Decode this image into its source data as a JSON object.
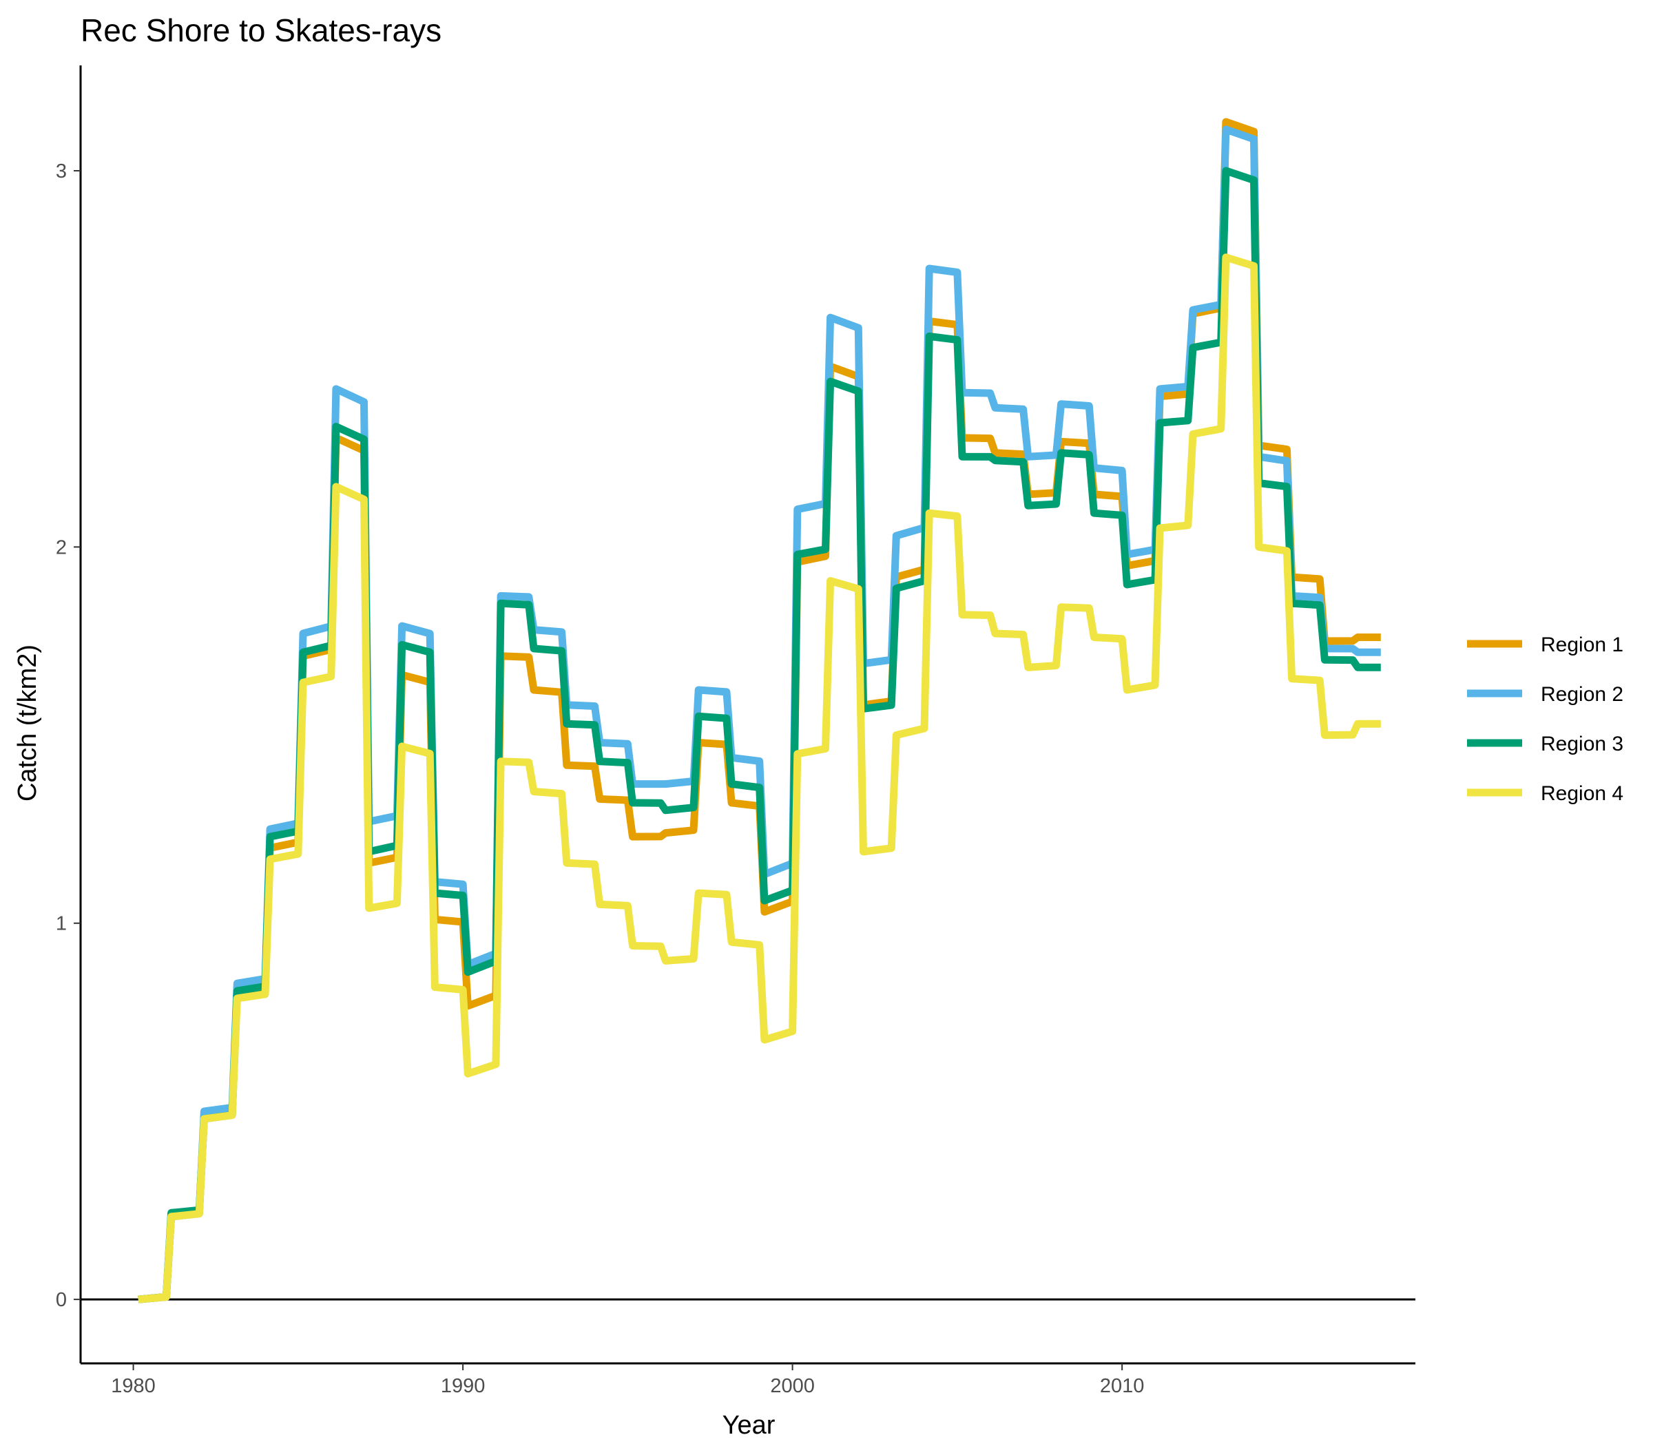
{
  "chart_data": {
    "type": "line",
    "title": "Rec Shore to Skates-rays",
    "xlabel": "Year",
    "ylabel": "Catch (t/km2)",
    "x_ticks": [
      1980,
      1990,
      2000,
      2010
    ],
    "y_ticks": [
      0,
      1,
      2,
      3
    ],
    "xlim": [
      1978.4,
      2018.9
    ],
    "ylim": [
      -0.17,
      3.28
    ],
    "grid": false,
    "legend_position": "right",
    "x": [
      1980,
      1981,
      1982,
      1983,
      1984,
      1985,
      1986,
      1987,
      1988,
      1989,
      1990,
      1991,
      1992,
      1993,
      1994,
      1995,
      1996,
      1997,
      1998,
      1999,
      2000,
      2001,
      2002,
      2003,
      2004,
      2005,
      2006,
      2007,
      2008,
      2009,
      2010,
      2011,
      2012,
      2013,
      2014,
      2015,
      2016,
      2017
    ],
    "series": [
      {
        "name": "Region 1",
        "color": "#E69F00",
        "values": [
          0.0,
          0.22,
          0.49,
          0.81,
          1.2,
          1.71,
          2.29,
          1.16,
          1.66,
          1.01,
          0.78,
          1.71,
          1.62,
          1.42,
          1.33,
          1.23,
          1.24,
          1.48,
          1.32,
          1.03,
          1.96,
          2.48,
          1.58,
          1.92,
          2.6,
          2.29,
          2.25,
          2.14,
          2.28,
          2.14,
          1.95,
          2.4,
          2.62,
          3.13,
          2.27,
          1.92,
          1.75,
          1.76
        ]
      },
      {
        "name": "Region 2",
        "color": "#56B4E9",
        "values": [
          0.0,
          0.22,
          0.5,
          0.84,
          1.25,
          1.77,
          2.42,
          1.27,
          1.79,
          1.11,
          0.89,
          1.87,
          1.78,
          1.58,
          1.48,
          1.37,
          1.37,
          1.62,
          1.44,
          1.13,
          2.1,
          2.61,
          1.69,
          2.03,
          2.74,
          2.41,
          2.37,
          2.24,
          2.38,
          2.21,
          1.98,
          2.42,
          2.63,
          3.11,
          2.24,
          1.87,
          1.73,
          1.72
        ]
      },
      {
        "name": "Region 3",
        "color": "#009E73",
        "values": [
          0.0,
          0.23,
          0.48,
          0.82,
          1.23,
          1.72,
          2.32,
          1.19,
          1.74,
          1.08,
          0.87,
          1.85,
          1.73,
          1.53,
          1.43,
          1.32,
          1.3,
          1.55,
          1.37,
          1.06,
          1.98,
          2.44,
          1.57,
          1.89,
          2.56,
          2.24,
          2.23,
          2.11,
          2.25,
          2.09,
          1.9,
          2.33,
          2.53,
          3.0,
          2.17,
          1.85,
          1.7,
          1.68
        ]
      },
      {
        "name": "Region 4",
        "color": "#F0E442",
        "values": [
          0.0,
          0.22,
          0.48,
          0.8,
          1.17,
          1.64,
          2.16,
          1.04,
          1.47,
          0.83,
          0.6,
          1.43,
          1.35,
          1.16,
          1.05,
          0.94,
          0.9,
          1.08,
          0.95,
          0.69,
          1.45,
          1.91,
          1.19,
          1.5,
          2.09,
          1.82,
          1.77,
          1.68,
          1.84,
          1.76,
          1.62,
          2.05,
          2.3,
          2.77,
          2.0,
          1.65,
          1.5,
          1.53
        ]
      }
    ]
  }
}
